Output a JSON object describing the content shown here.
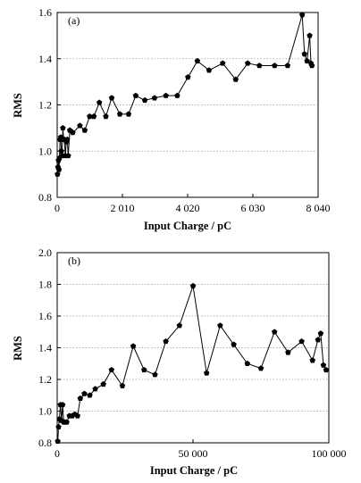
{
  "chart_data": [
    {
      "type": "line",
      "panel_label": "(a)",
      "xlabel": "Input Charge / pC",
      "ylabel": "RMS",
      "xlim": [
        0,
        8040
      ],
      "ylim": [
        0.8,
        1.6
      ],
      "x_ticks": [
        0,
        2010,
        4020,
        6030,
        8040
      ],
      "x_tick_labels": [
        "0",
        "2 010",
        "4 020",
        "6 030",
        "8 040"
      ],
      "y_ticks": [
        0.8,
        1.0,
        1.2,
        1.4,
        1.6
      ],
      "y_tick_labels": [
        "0.8",
        "1.0",
        "1.2",
        "1.4",
        "1.6"
      ],
      "grid": "horizontal dotted",
      "marker": "pentagon",
      "series": [
        {
          "color": "#000000",
          "x": [
            10,
            25,
            40,
            55,
            70,
            90,
            110,
            130,
            150,
            175,
            200,
            225,
            250,
            280,
            310,
            340,
            390,
            480,
            700,
            850,
            1000,
            1130,
            1300,
            1500,
            1680,
            1930,
            2200,
            2420,
            2700,
            3000,
            3350,
            3700,
            4030,
            4320,
            4680,
            5100,
            5500,
            5870,
            6230,
            6700,
            7100,
            7550,
            7620,
            7700,
            7780,
            7820,
            7850
          ],
          "y": [
            0.9,
            0.93,
            0.96,
            0.92,
            0.97,
            1.05,
            1.06,
            1.0,
            0.98,
            1.1,
            1.05,
            1.05,
            0.98,
            1.04,
            1.05,
            0.98,
            1.09,
            1.08,
            1.11,
            1.09,
            1.15,
            1.15,
            1.21,
            1.15,
            1.23,
            1.16,
            1.16,
            1.24,
            1.22,
            1.23,
            1.24,
            1.24,
            1.32,
            1.39,
            1.35,
            1.38,
            1.31,
            1.38,
            1.37,
            1.37,
            1.37,
            1.59,
            1.42,
            1.39,
            1.5,
            1.38,
            1.37
          ]
        }
      ]
    },
    {
      "type": "line",
      "panel_label": "(b)",
      "xlabel": "Input Charge / pC",
      "ylabel": "RMS",
      "xlim": [
        0,
        100000
      ],
      "ylim": [
        0.8,
        2.0
      ],
      "x_ticks": [
        0,
        50000,
        100000
      ],
      "x_tick_labels": [
        "0",
        "50 000",
        "100 000"
      ],
      "y_ticks": [
        0.8,
        1.0,
        1.2,
        1.4,
        1.6,
        1.8,
        2.0
      ],
      "y_tick_labels": [
        "0.8",
        "1.0",
        "1.2",
        "1.4",
        "1.6",
        "1.8",
        "2.0"
      ],
      "grid": "horizontal dotted",
      "marker": "pentagon",
      "series": [
        {
          "color": "#000000",
          "x": [
            200,
            500,
            800,
            1200,
            1600,
            2000,
            2400,
            2800,
            3500,
            4500,
            5500,
            6500,
            7500,
            8500,
            10000,
            12000,
            14000,
            17000,
            20000,
            24000,
            28000,
            32000,
            36000,
            40000,
            45000,
            50000,
            55000,
            60000,
            65000,
            70000,
            75000,
            80000,
            85000,
            90000,
            94000,
            96000,
            97000,
            98000,
            99000
          ],
          "y": [
            0.81,
            0.9,
            0.95,
            1.04,
            0.94,
            1.04,
            0.93,
            0.93,
            0.93,
            0.97,
            0.97,
            0.98,
            0.97,
            1.08,
            1.11,
            1.1,
            1.14,
            1.17,
            1.26,
            1.16,
            1.41,
            1.26,
            1.23,
            1.44,
            1.54,
            1.79,
            1.24,
            1.54,
            1.42,
            1.3,
            1.27,
            1.5,
            1.37,
            1.44,
            1.32,
            1.45,
            1.49,
            1.29,
            1.26
          ]
        }
      ]
    }
  ]
}
